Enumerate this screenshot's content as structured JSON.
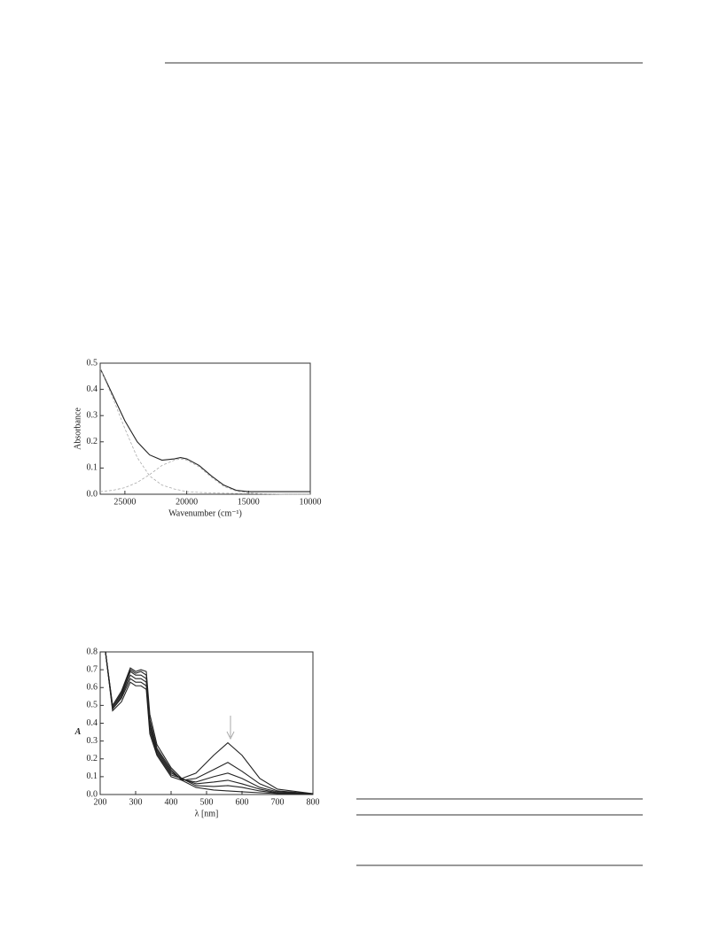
{
  "chart_data": [
    {
      "type": "line",
      "y_label": "Absorbance",
      "x_label": "Wavenumber (cm⁻¹)",
      "x": [
        27000,
        26000,
        25000,
        24000,
        23000,
        22000,
        21000,
        20500,
        20000,
        19000,
        18000,
        17000,
        16000,
        15000,
        14000,
        12000,
        10000
      ],
      "xlim": [
        27000,
        10000
      ],
      "xticks": [
        25000,
        20000,
        15000,
        10000
      ],
      "ylim": [
        0,
        0.5
      ],
      "yticks": [
        {
          "value": 0,
          "label": "0.0"
        },
        0.1,
        0.2,
        0.3,
        0.4,
        0.5
      ],
      "series": [
        {
          "color": "#222222",
          "dashed": false,
          "values": [
            0.48,
            0.38,
            0.28,
            0.2,
            0.15,
            0.13,
            0.135,
            0.14,
            0.135,
            0.11,
            0.07,
            0.035,
            0.015,
            0.01,
            0.01,
            0.01,
            0.01
          ]
        },
        {
          "color": "#aaaaaa",
          "dashed": true,
          "values": [
            0.48,
            0.37,
            0.25,
            0.14,
            0.07,
            0.035,
            0.02,
            0.015,
            0.01,
            0.007,
            0.005,
            0.004,
            0.003,
            0.002,
            0.001,
            0,
            0
          ]
        },
        {
          "color": "#aaaaaa",
          "dashed": true,
          "values": [
            0.01,
            0.015,
            0.025,
            0.045,
            0.075,
            0.11,
            0.13,
            0.135,
            0.13,
            0.105,
            0.065,
            0.03,
            0.012,
            0.005,
            0.002,
            0,
            0
          ]
        }
      ]
    },
    {
      "type": "line",
      "y_label": "A",
      "x_label": "λ [nm]",
      "x": [
        200,
        215,
        235,
        260,
        285,
        300,
        315,
        330,
        340,
        360,
        400,
        430,
        470,
        520,
        560,
        600,
        650,
        700,
        800
      ],
      "xlim": [
        200,
        800
      ],
      "xticks": [
        200,
        300,
        400,
        500,
        600,
        700,
        800
      ],
      "ylim": [
        0,
        0.8
      ],
      "yticks": [
        {
          "value": 0,
          "label": "0.0"
        },
        0.1,
        0.2,
        0.3,
        0.4,
        0.5,
        0.6,
        0.7,
        0.8
      ],
      "series": [
        {
          "color": "#222222",
          "dashed": false,
          "values": [
            0.8,
            0.8,
            0.5,
            0.58,
            0.71,
            0.69,
            0.7,
            0.69,
            0.45,
            0.28,
            0.15,
            0.09,
            0.12,
            0.22,
            0.29,
            0.22,
            0.09,
            0.03,
            0.005
          ]
        },
        {
          "color": "#222222",
          "dashed": false,
          "values": [
            0.8,
            0.8,
            0.49,
            0.57,
            0.7,
            0.68,
            0.69,
            0.67,
            0.42,
            0.26,
            0.14,
            0.08,
            0.09,
            0.14,
            0.18,
            0.13,
            0.06,
            0.02,
            0.004
          ]
        },
        {
          "color": "#222222",
          "dashed": false,
          "values": [
            0.8,
            0.8,
            0.49,
            0.56,
            0.69,
            0.67,
            0.67,
            0.65,
            0.4,
            0.25,
            0.13,
            0.085,
            0.07,
            0.1,
            0.12,
            0.09,
            0.04,
            0.015,
            0.003
          ]
        },
        {
          "color": "#222222",
          "dashed": false,
          "values": [
            0.8,
            0.8,
            0.48,
            0.55,
            0.67,
            0.65,
            0.65,
            0.63,
            0.38,
            0.24,
            0.12,
            0.09,
            0.06,
            0.07,
            0.08,
            0.06,
            0.03,
            0.01,
            0.003
          ]
        },
        {
          "color": "#222222",
          "dashed": false,
          "values": [
            0.8,
            0.8,
            0.48,
            0.54,
            0.65,
            0.63,
            0.63,
            0.61,
            0.36,
            0.23,
            0.11,
            0.09,
            0.05,
            0.045,
            0.05,
            0.04,
            0.02,
            0.008,
            0.002
          ]
        },
        {
          "color": "#222222",
          "dashed": false,
          "values": [
            0.8,
            0.8,
            0.47,
            0.52,
            0.63,
            0.61,
            0.61,
            0.59,
            0.34,
            0.22,
            0.1,
            0.08,
            0.04,
            0.025,
            0.02,
            0.015,
            0.01,
            0.005,
            0.002
          ]
        }
      ]
    }
  ]
}
